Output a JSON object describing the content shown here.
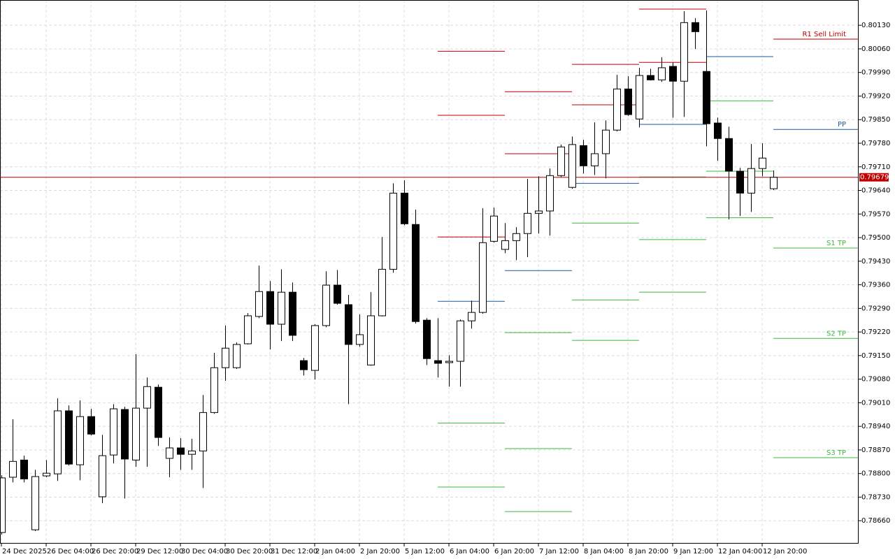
{
  "chart_data": {
    "type": "candlestick",
    "categories": [
      "24 Dec 2025",
      null,
      null,
      null,
      "26 Dec 04:00",
      null,
      null,
      null,
      "26 Dec 20:00",
      null,
      null,
      null,
      "29 Dec 12:00",
      null,
      null,
      null,
      "30 Dec 04:00",
      null,
      null,
      null,
      "30 Dec 20:00",
      null,
      null,
      null,
      "31 Dec 12:00",
      null,
      null,
      null,
      "2 Jan 04:00",
      null,
      null,
      null,
      "2 Jan 20:00",
      null,
      null,
      null,
      "5 Jan 12:00",
      null,
      null,
      null,
      "6 Jan 04:00",
      null,
      null,
      null,
      "6 Jan 20:00",
      null,
      null,
      null,
      "7 Jan 12:00",
      null,
      null,
      null,
      "8 Jan 04:00",
      null,
      null,
      null,
      "8 Jan 20:00",
      null,
      null,
      null,
      "9 Jan 12:00",
      null,
      null,
      null,
      "12 Jan 04:00",
      null,
      null,
      null,
      "12 Jan 20:00",
      null
    ],
    "open": [
      0.78625,
      0.78789,
      0.7884,
      0.78633,
      0.78793,
      0.78799,
      0.78986,
      0.78826,
      0.78969,
      0.78731,
      0.78855,
      0.7899,
      0.7884,
      0.78994,
      0.79056,
      0.78845,
      0.78876,
      0.78857,
      0.78867,
      0.78981,
      0.79114,
      0.79114,
      0.79185,
      0.79266,
      0.7934,
      0.79243,
      0.79338,
      0.79135,
      0.79106,
      0.79239,
      0.79359,
      0.79301,
      0.79183,
      0.79122,
      0.79268,
      0.79406,
      0.79632,
      0.79539,
      0.79255,
      0.79135,
      0.79129,
      0.79133,
      0.79253,
      0.79278,
      0.79489,
      0.79465,
      0.79491,
      0.79512,
      0.79572,
      0.79579,
      0.79684,
      0.79649,
      0.79773,
      0.79713,
      0.79749,
      0.79819,
      0.79941,
      0.79852,
      0.79981,
      0.79968,
      0.80008,
      0.79964,
      0.80138,
      0.79993,
      0.7984,
      0.79794,
      0.79697,
      0.79632,
      0.79705,
      0.79645
    ],
    "high": [
      0.78795,
      0.78961,
      0.78853,
      0.78811,
      0.7884,
      0.79023,
      0.79002,
      0.79017,
      0.78992,
      0.78915,
      0.79006,
      0.78998,
      0.79154,
      0.79085,
      0.79064,
      0.78907,
      0.78905,
      0.78903,
      0.79033,
      0.79158,
      0.79239,
      0.79189,
      0.79276,
      0.79417,
      0.79371,
      0.79406,
      0.79367,
      0.79143,
      0.79243,
      0.794,
      0.79404,
      0.7933,
      0.79272,
      0.79338,
      0.79502,
      0.79661,
      0.7967,
      0.79583,
      0.79261,
      0.79261,
      0.79151,
      0.79257,
      0.79313,
      0.79587,
      0.79589,
      0.79543,
      0.79531,
      0.79674,
      0.79682,
      0.79705,
      0.79776,
      0.798,
      0.7979,
      0.79842,
      0.79848,
      0.79983,
      0.79979,
      0.80004,
      0.80001,
      0.80035,
      0.8002,
      0.80172,
      0.80151,
      0.80174,
      0.79856,
      0.79829,
      0.79707,
      0.79778,
      0.7978,
      0.79699
    ],
    "low": [
      0.78619,
      0.78774,
      0.78774,
      0.78629,
      0.78789,
      0.78778,
      0.78824,
      0.7878,
      0.78913,
      0.78712,
      0.7883,
      0.78726,
      0.7882,
      0.7882,
      0.78882,
      0.78789,
      0.78811,
      0.78811,
      0.78757,
      0.78977,
      0.79075,
      0.7911,
      0.79183,
      0.79261,
      0.79168,
      0.79193,
      0.79193,
      0.79091,
      0.79079,
      0.79234,
      0.79301,
      0.79006,
      0.79176,
      0.7912,
      0.79266,
      0.79396,
      0.79537,
      0.79245,
      0.79122,
      0.79085,
      0.79058,
      0.79058,
      0.7923,
      0.79274,
      0.79485,
      0.79454,
      0.79433,
      0.79442,
      0.79512,
      0.79506,
      0.7968,
      0.79645,
      0.7969,
      0.79686,
      0.79676,
      0.79815,
      0.79861,
      0.79827,
      0.79966,
      0.79962,
      0.79856,
      0.79858,
      0.8006,
      0.79771,
      0.79728,
      0.79554,
      0.79564,
      0.79576,
      0.79682,
      0.79641
    ],
    "close": [
      0.78787,
      0.78836,
      0.78784,
      0.78791,
      0.78801,
      0.78986,
      0.78828,
      0.78969,
      0.78917,
      0.78853,
      0.78992,
      0.78843,
      0.78994,
      0.79058,
      0.78907,
      0.78876,
      0.78857,
      0.78867,
      0.78981,
      0.79114,
      0.79172,
      0.79183,
      0.79268,
      0.7934,
      0.79243,
      0.79338,
      0.7921,
      0.79108,
      0.79239,
      0.79359,
      0.79305,
      0.79183,
      0.79212,
      0.79268,
      0.79406,
      0.79632,
      0.79541,
      0.79251,
      0.79141,
      0.79127,
      0.79133,
      0.79253,
      0.79278,
      0.79485,
      0.79564,
      0.79491,
      0.79512,
      0.79572,
      0.79579,
      0.79684,
      0.79769,
      0.79776,
      0.79713,
      0.79749,
      0.79819,
      0.79941,
      0.79865,
      0.79981,
      0.79968,
      0.80004,
      0.79964,
      0.80138,
      0.80111,
      0.79838,
      0.79794,
      0.79697,
      0.79632,
      0.79705,
      0.79736,
      0.79679
    ],
    "up_color": "#ffffff",
    "down_color": "#000000",
    "ylim": [
      0.78592,
      0.80205
    ],
    "yticks": [
      {
        "value": 0.8013,
        "label": "0.80130"
      },
      {
        "value": 0.8006,
        "label": "0.80060"
      },
      {
        "value": 0.7999,
        "label": "0.79990"
      },
      {
        "value": 0.7992,
        "label": "0.79920"
      },
      {
        "value": 0.7985,
        "label": "0.79850"
      },
      {
        "value": 0.7978,
        "label": "0.79780"
      },
      {
        "value": 0.7971,
        "label": "0.79710"
      },
      {
        "value": 0.7964,
        "label": "0.79640"
      },
      {
        "value": 0.7957,
        "label": "0.79570"
      },
      {
        "value": 0.795,
        "label": "0.79500"
      },
      {
        "value": 0.7943,
        "label": "0.79430"
      },
      {
        "value": 0.7936,
        "label": "0.79360"
      },
      {
        "value": 0.7929,
        "label": "0.79290"
      },
      {
        "value": 0.7922,
        "label": "0.79220"
      },
      {
        "value": 0.7915,
        "label": "0.79150"
      },
      {
        "value": 0.7908,
        "label": "0.79080"
      },
      {
        "value": 0.7901,
        "label": "0.79010"
      },
      {
        "value": 0.7894,
        "label": "0.78940"
      },
      {
        "value": 0.7887,
        "label": "0.78870"
      },
      {
        "value": 0.788,
        "label": "0.78800"
      },
      {
        "value": 0.7873,
        "label": "0.78730"
      },
      {
        "value": 0.7866,
        "label": "0.78660"
      }
    ],
    "grid": true,
    "last_price": {
      "value": 0.79679,
      "label": "0.79679"
    },
    "last_price_color": "#c00000",
    "levels": [
      {
        "start": 39,
        "end": 45,
        "lines": [
          {
            "value": 0.80053,
            "color": "#c00000"
          },
          {
            "value": 0.79863,
            "color": "#c00000"
          },
          {
            "value": 0.79502,
            "color": "#c00000"
          },
          {
            "value": 0.79311,
            "color": "#1e5aa0"
          },
          {
            "value": 0.7895,
            "color": "#3cb83c"
          },
          {
            "value": 0.7876,
            "color": "#3cb83c"
          }
        ]
      },
      {
        "start": 45,
        "end": 51,
        "lines": [
          {
            "value": 0.79933,
            "color": "#c00000"
          },
          {
            "value": 0.79749,
            "color": "#c00000"
          },
          {
            "value": 0.79402,
            "color": "#1e5aa0"
          },
          {
            "value": 0.79218,
            "color": "#3cb83c"
          },
          {
            "value": 0.78874,
            "color": "#3cb83c"
          },
          {
            "value": 0.78687,
            "color": "#3cb83c"
          }
        ]
      },
      {
        "start": 51,
        "end": 57,
        "lines": [
          {
            "value": 0.80014,
            "color": "#c00000"
          },
          {
            "value": 0.79894,
            "color": "#c00000"
          },
          {
            "value": 0.79661,
            "color": "#1e5aa0"
          },
          {
            "value": 0.79543,
            "color": "#3cb83c"
          },
          {
            "value": 0.79315,
            "color": "#3cb83c"
          },
          {
            "value": 0.79195,
            "color": "#3cb83c"
          }
        ]
      },
      {
        "start": 57,
        "end": 63,
        "lines": [
          {
            "value": 0.80178,
            "color": "#c00000"
          },
          {
            "value": 0.8002,
            "color": "#c00000"
          },
          {
            "value": 0.79836,
            "color": "#1e5aa0"
          },
          {
            "value": 0.7968,
            "color": "#3cb83c"
          },
          {
            "value": 0.79494,
            "color": "#3cb83c"
          },
          {
            "value": 0.79338,
            "color": "#3cb83c"
          }
        ]
      },
      {
        "start": 63,
        "end": 69,
        "lines": [
          {
            "value": 0.80037,
            "color": "#1e5aa0"
          },
          {
            "value": 0.79906,
            "color": "#3cb83c"
          },
          {
            "value": 0.79697,
            "color": "#3cb83c"
          },
          {
            "value": 0.79559,
            "color": "#3cb83c"
          }
        ]
      },
      {
        "start": 69,
        "lines": [
          {
            "value": 0.80089,
            "color": "#c00000",
            "label": "R1 Sell Limit"
          },
          {
            "value": 0.79821,
            "color": "#1e5aa0",
            "label": "PP"
          },
          {
            "value": 0.79469,
            "color": "#3cb83c",
            "label": "S1 TP"
          },
          {
            "value": 0.79201,
            "color": "#3cb83c",
            "label": "S2 TP"
          },
          {
            "value": 0.78847,
            "color": "#3cb83c",
            "label": "S3 TP"
          }
        ]
      }
    ]
  }
}
